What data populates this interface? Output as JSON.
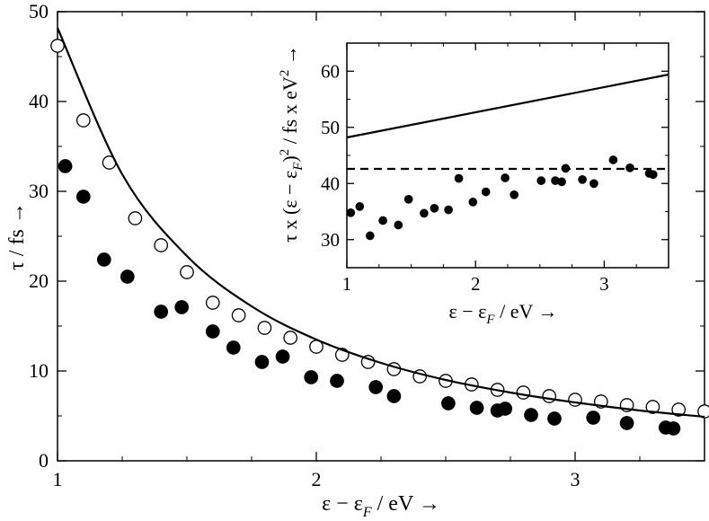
{
  "chart_data": [
    {
      "type": "scatter",
      "panel": "main",
      "xlim": [
        1.0,
        3.5
      ],
      "ylim": [
        0,
        50
      ],
      "x_ticks": [
        "1",
        "2",
        "3"
      ],
      "y_ticks": [
        "0",
        "10",
        "20",
        "30",
        "40",
        "50"
      ],
      "xlabel": {
        "main": "ε − ε",
        "sub": "F",
        "tail": " / eV →"
      },
      "ylabel": "τ / fs →",
      "grid": false,
      "series": [
        {
          "style": "open-circle",
          "x": [
            1.0,
            1.1,
            1.2,
            1.3,
            1.4,
            1.5,
            1.6,
            1.7,
            1.8,
            1.9,
            2.0,
            2.1,
            2.2,
            2.3,
            2.4,
            2.5,
            2.6,
            2.7,
            2.8,
            2.9,
            3.0,
            3.1,
            3.2,
            3.3,
            3.4,
            3.5
          ],
          "y": [
            46.2,
            37.9,
            33.2,
            27.0,
            24.0,
            21.0,
            17.6,
            16.2,
            14.8,
            13.7,
            12.7,
            11.8,
            11.0,
            10.2,
            9.4,
            8.9,
            8.5,
            7.9,
            7.6,
            7.2,
            6.8,
            6.6,
            6.2,
            6.0,
            5.7,
            5.5
          ]
        },
        {
          "style": "filled-circle",
          "x": [
            1.03,
            1.1,
            1.18,
            1.27,
            1.4,
            1.48,
            1.6,
            1.68,
            1.79,
            1.87,
            1.98,
            2.08,
            2.23,
            2.3,
            2.51,
            2.62,
            2.7,
            2.73,
            2.83,
            2.92,
            3.07,
            3.2,
            3.35,
            3.38
          ],
          "y": [
            32.8,
            29.4,
            22.4,
            20.5,
            16.6,
            17.1,
            14.4,
            12.6,
            11.0,
            11.6,
            9.3,
            8.9,
            8.2,
            7.2,
            6.4,
            5.9,
            5.6,
            5.8,
            5.1,
            4.7,
            4.8,
            4.2,
            3.7,
            3.6
          ]
        },
        {
          "style": "solid-line",
          "formula": "48.2 / (x)^2 * (1 + 0.0838*(x-1)) approx",
          "x": [
            1.0,
            1.25,
            1.5,
            1.75,
            2.0,
            2.25,
            2.5,
            2.75,
            3.0,
            3.25,
            3.5
          ],
          "y": [
            48.2,
            31.9,
            22.8,
            17.2,
            13.5,
            10.9,
            9.0,
            7.6,
            6.5,
            5.6,
            4.9
          ]
        }
      ]
    },
    {
      "type": "scatter",
      "panel": "inset",
      "xlim": [
        1.0,
        3.5
      ],
      "ylim": [
        25,
        65
      ],
      "x_ticks": [
        "1",
        "2",
        "3"
      ],
      "y_ticks": [
        "30",
        "40",
        "50",
        "60"
      ],
      "xlabel": {
        "main": "ε − ε",
        "sub": "F",
        "tail": " / eV  →"
      },
      "ylabel": {
        "a": "τ x (ε − ε",
        "sub": "F",
        "b": ")",
        "sup1": "2",
        "c": " / fs x eV",
        "sup2": "2",
        "d": " →"
      },
      "grid": false,
      "series": [
        {
          "style": "filled-circle",
          "x": [
            1.03,
            1.1,
            1.18,
            1.28,
            1.4,
            1.48,
            1.6,
            1.68,
            1.79,
            1.87,
            1.98,
            2.08,
            2.23,
            2.3,
            2.51,
            2.62,
            2.67,
            2.7,
            2.83,
            2.92,
            3.07,
            3.2,
            3.35,
            3.38
          ],
          "y": [
            34.8,
            35.9,
            30.7,
            33.4,
            32.6,
            37.2,
            34.7,
            35.6,
            35.3,
            40.9,
            36.7,
            38.5,
            41.0,
            38.0,
            40.5,
            40.5,
            40.3,
            42.7,
            40.7,
            40.0,
            44.2,
            42.8,
            41.8,
            41.6
          ]
        },
        {
          "style": "solid-line",
          "x": [
            1.0,
            3.5
          ],
          "y": [
            48.2,
            59.4
          ]
        },
        {
          "style": "dashed-line",
          "x": [
            1.0,
            3.5
          ],
          "y": [
            42.6,
            42.6
          ]
        }
      ]
    }
  ]
}
